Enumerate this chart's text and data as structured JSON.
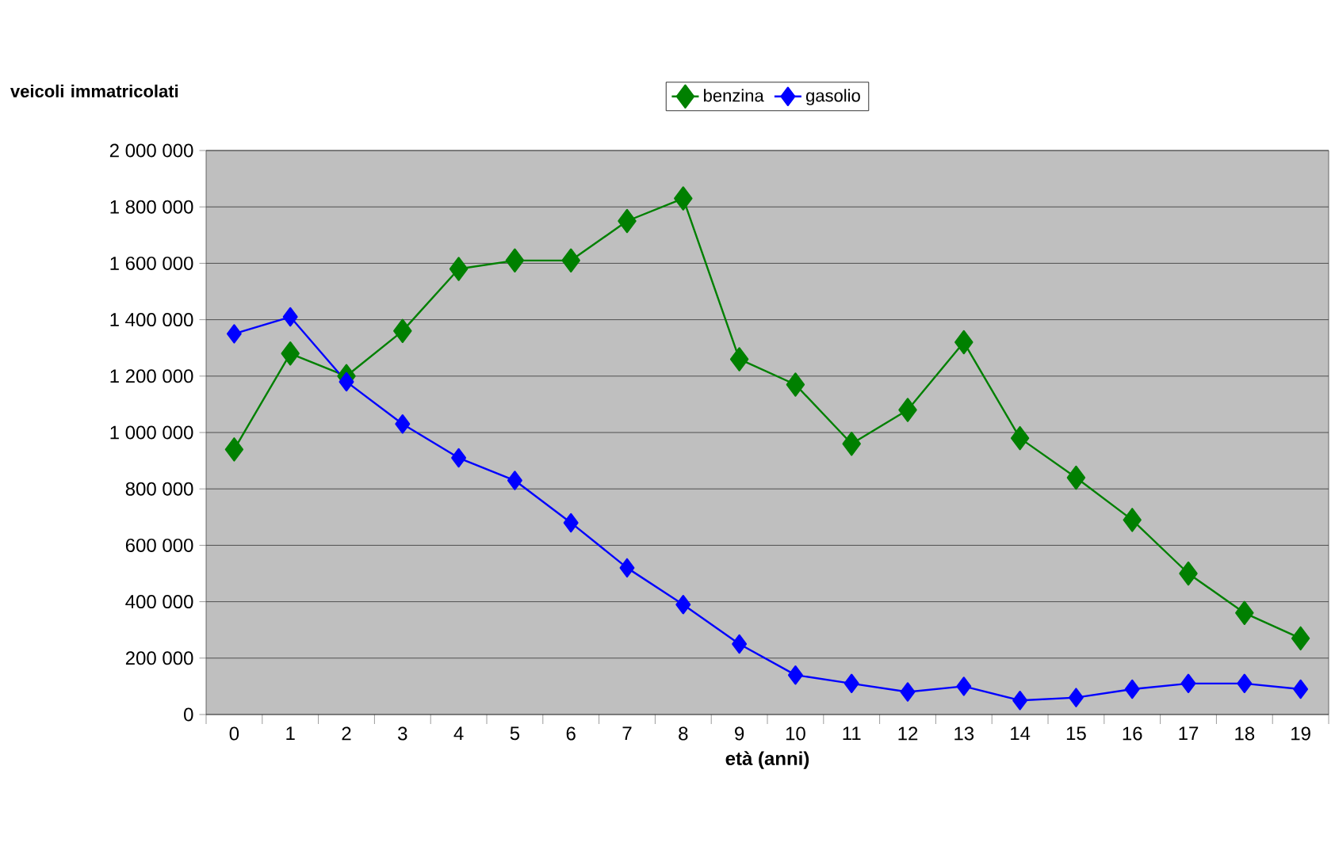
{
  "chart_data": {
    "type": "line",
    "xlabel": "età (anni)",
    "ylabel": "veicoli immatricolati",
    "categories": [
      "0",
      "1",
      "2",
      "3",
      "4",
      "5",
      "6",
      "7",
      "8",
      "9",
      "10",
      "11",
      "12",
      "13",
      "14",
      "15",
      "16",
      "17",
      "18",
      "19"
    ],
    "series": [
      {
        "name": "benzina",
        "color": "#008000",
        "values": [
          940000,
          1280000,
          1200000,
          1360000,
          1580000,
          1610000,
          1610000,
          1750000,
          1830000,
          1260000,
          1170000,
          960000,
          1080000,
          1320000,
          980000,
          840000,
          690000,
          500000,
          360000,
          270000
        ]
      },
      {
        "name": "gasolio",
        "color": "#0000ff",
        "values": [
          1350000,
          1410000,
          1180000,
          1030000,
          910000,
          830000,
          680000,
          520000,
          390000,
          250000,
          140000,
          110000,
          80000,
          100000,
          50000,
          60000,
          90000,
          110000,
          110000,
          90000
        ]
      }
    ],
    "ylim": [
      0,
      2000000
    ],
    "yticks": [
      {
        "value": 0,
        "label": "0"
      },
      {
        "value": 200000,
        "label": "200 000"
      },
      {
        "value": 400000,
        "label": "400 000"
      },
      {
        "value": 600000,
        "label": "600 000"
      },
      {
        "value": 800000,
        "label": "800 000"
      },
      {
        "value": 1000000,
        "label": "1 000 000"
      },
      {
        "value": 1200000,
        "label": "1 200 000"
      },
      {
        "value": 1400000,
        "label": "1 400 000"
      },
      {
        "value": 1600000,
        "label": "1 600 000"
      },
      {
        "value": 1800000,
        "label": "1 800 000"
      },
      {
        "value": 2000000,
        "label": "2 000 000"
      }
    ],
    "grid": "y",
    "legend": "top",
    "marker": "diamond",
    "line_style": "solid"
  }
}
